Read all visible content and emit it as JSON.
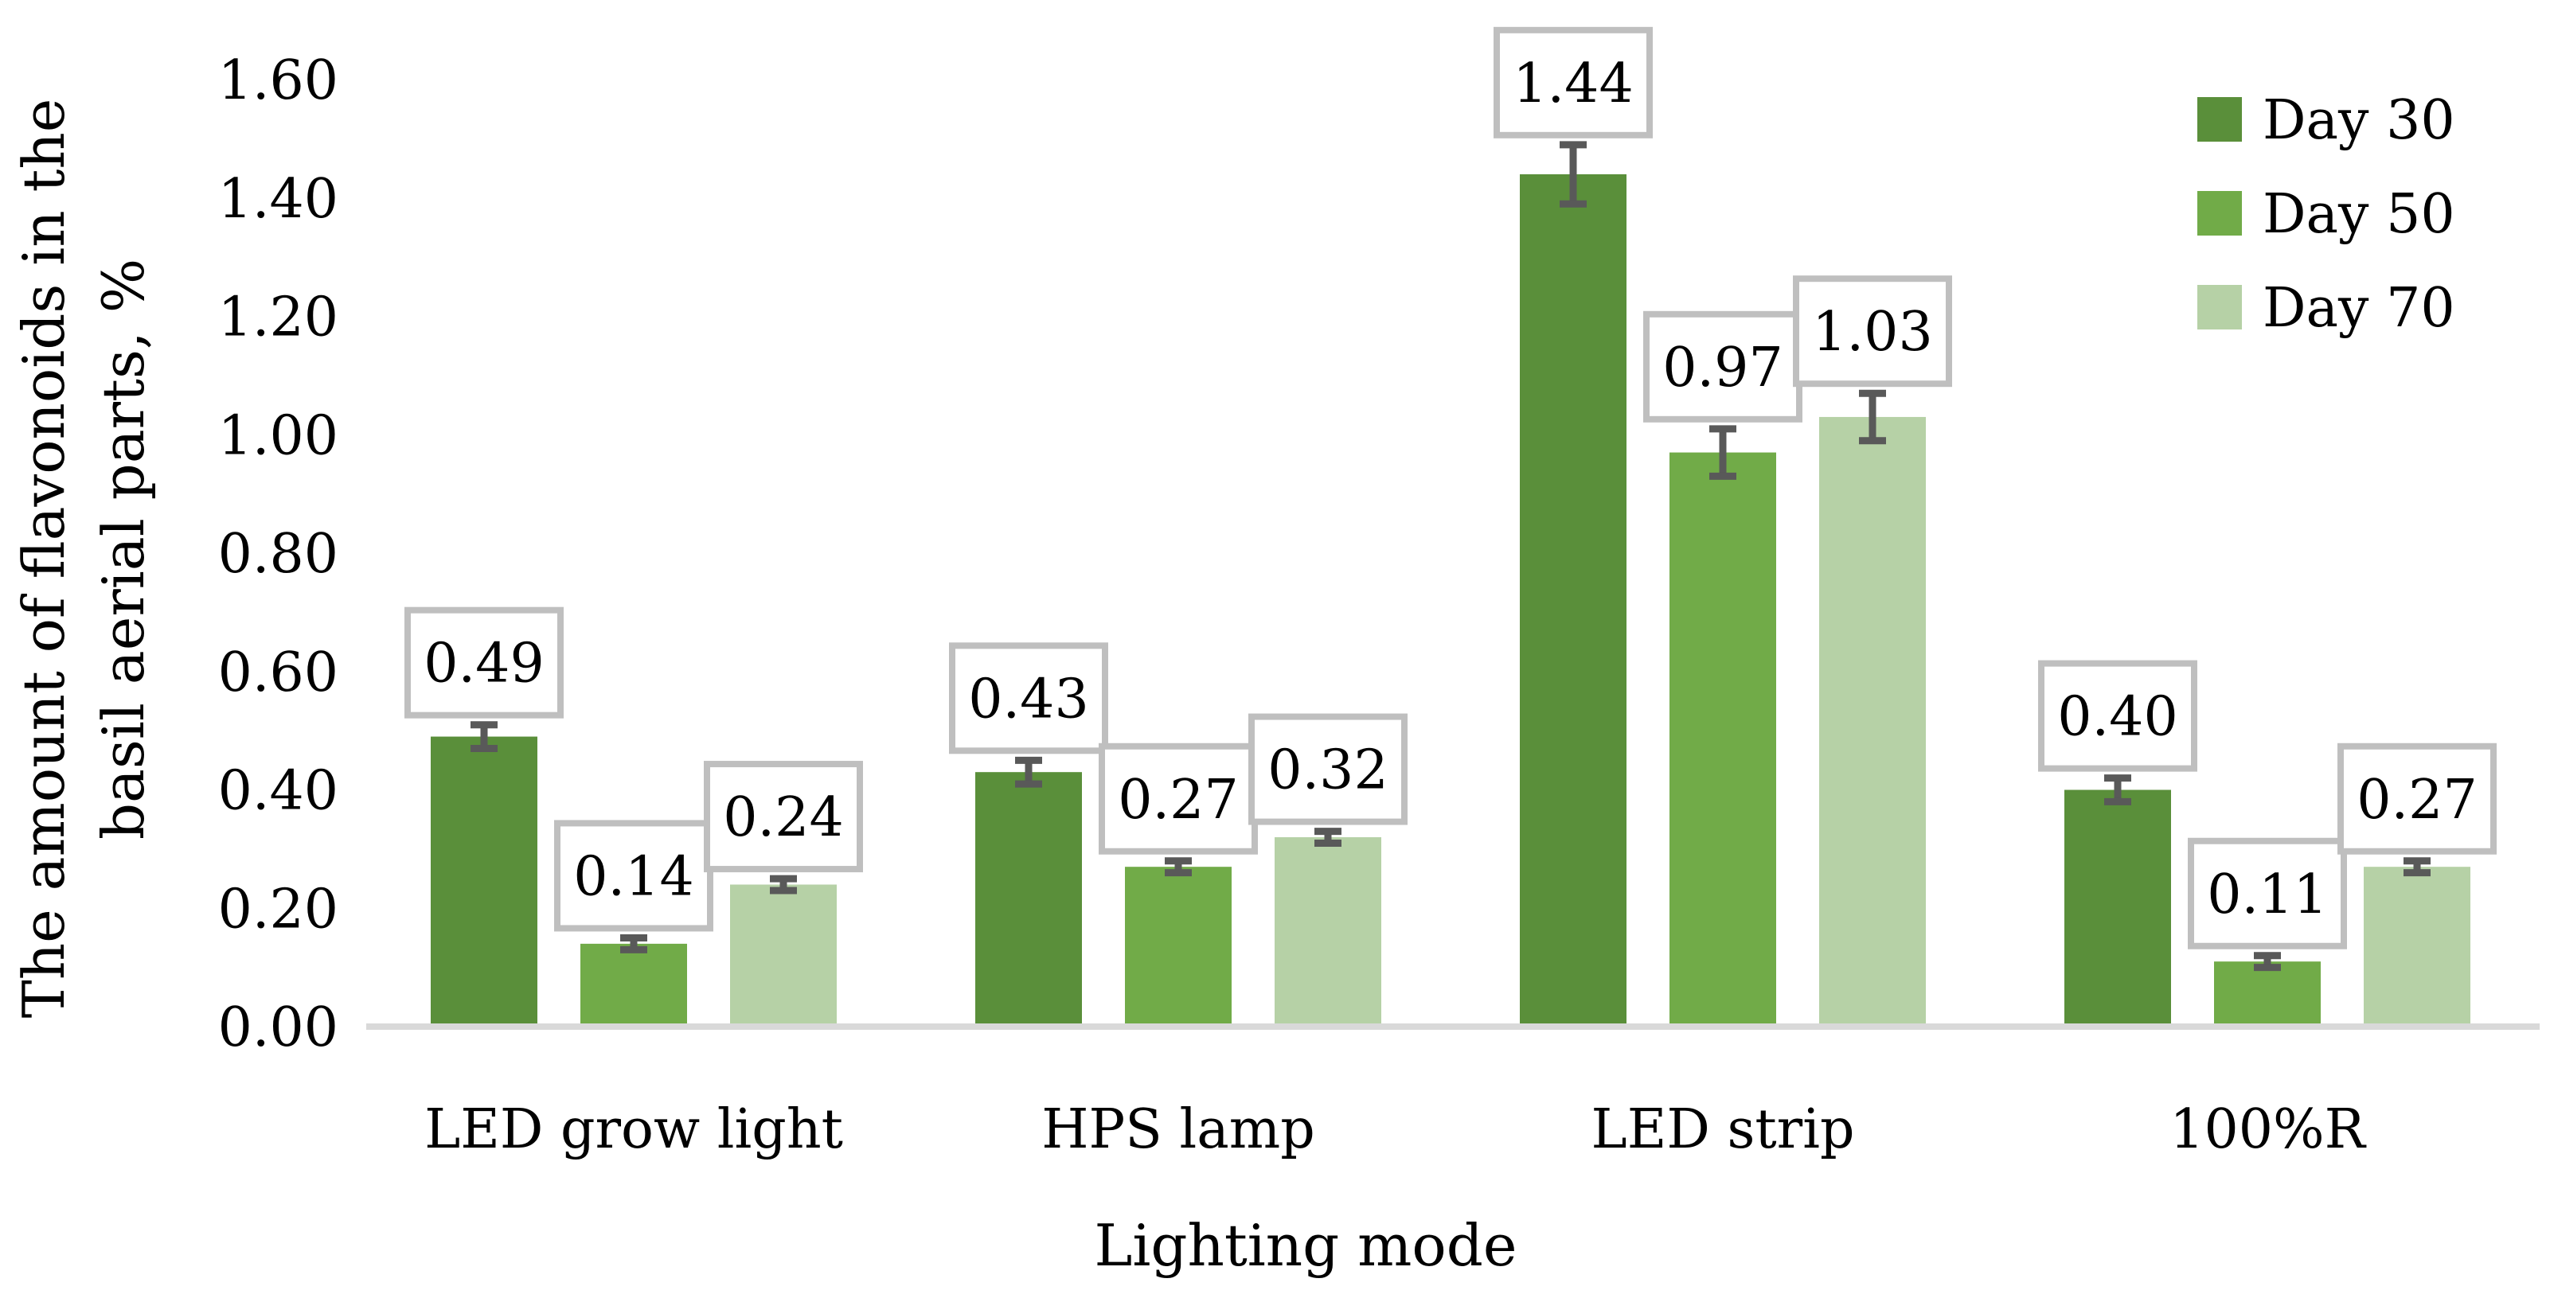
{
  "chart_data": {
    "type": "bar",
    "title": "",
    "xlabel": "Lighting mode",
    "ylabel_lines": [
      "The amount of flavonoids in the",
      "basil aerial parts, %"
    ],
    "categories": [
      "LED grow light",
      "HPS lamp",
      "LED strip",
      "100%R"
    ],
    "ylim": [
      0,
      1.6
    ],
    "yticks": [
      "0.00",
      "0.20",
      "0.40",
      "0.60",
      "0.80",
      "1.00",
      "1.20",
      "1.40",
      "1.60"
    ],
    "ytick_values": [
      0,
      0.2,
      0.4,
      0.6,
      0.8,
      1.0,
      1.2,
      1.4,
      1.6
    ],
    "grid": false,
    "legend_position": "top-right",
    "series": [
      {
        "name": "Day 30",
        "color": "#5a8f3a",
        "values": [
          0.49,
          0.43,
          1.44,
          0.4
        ],
        "labels": [
          "0.49",
          "0.43",
          "1.44",
          "0.40"
        ],
        "errors": [
          0.02,
          0.02,
          0.05,
          0.02
        ]
      },
      {
        "name": "Day 50",
        "color": "#71ab48",
        "values": [
          0.14,
          0.27,
          0.97,
          0.11
        ],
        "labels": [
          "0.14",
          "0.27",
          "0.97",
          "0.11"
        ],
        "errors": [
          0.01,
          0.01,
          0.04,
          0.01
        ]
      },
      {
        "name": "Day 70",
        "color": "#b6d1a6",
        "values": [
          0.24,
          0.32,
          1.03,
          0.27
        ],
        "labels": [
          "0.24",
          "0.32",
          "1.03",
          "0.27"
        ],
        "errors": [
          0.01,
          0.01,
          0.04,
          0.01
        ]
      }
    ],
    "error_bar_color": "#595959",
    "label_box_border_color": "#bfbfbf",
    "axis_color": "#d9d9d9"
  }
}
